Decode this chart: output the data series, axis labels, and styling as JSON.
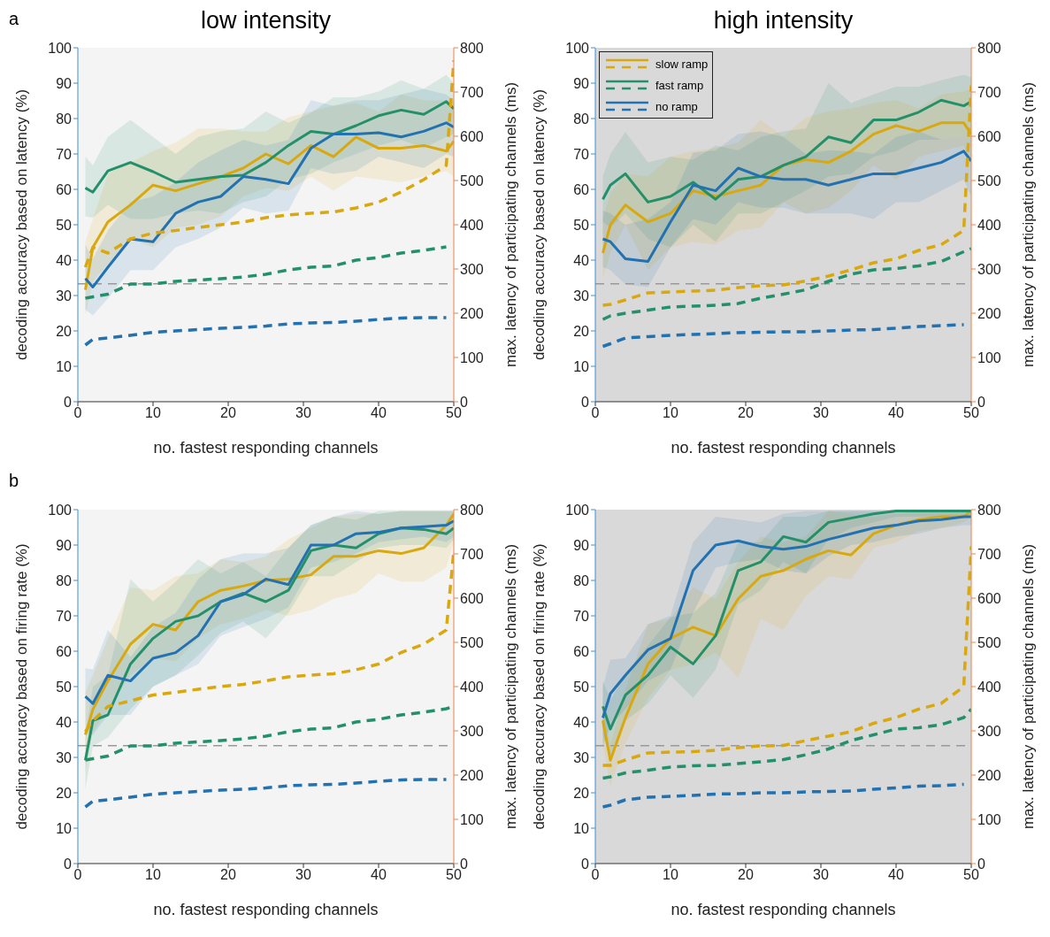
{
  "chart_data": [
    {
      "type": "line",
      "title": "low intensity",
      "xlabel": "no. fastest responding channels",
      "ylabel": "decoding accuracy based on latency (%)",
      "y2label": "max. latency of participating channels (ms)",
      "annotations": [
        "a"
      ],
      "x": [
        1,
        2,
        4,
        7,
        10,
        13,
        16,
        19,
        22,
        25,
        28,
        31,
        34,
        37,
        40,
        43,
        46,
        49,
        50
      ],
      "xlim": [
        0,
        50
      ],
      "xticks": [
        0,
        10,
        20,
        30,
        40,
        50
      ],
      "ylim": [
        0,
        100
      ],
      "yticks": [
        0,
        10,
        20,
        30,
        40,
        50,
        60,
        70,
        80,
        90,
        100
      ],
      "y2lim": [
        0,
        800
      ],
      "y2ticks": [
        0,
        100,
        200,
        300,
        400,
        500,
        600,
        700,
        800
      ],
      "legend": false,
      "ref_lines": [
        {
          "axis": "y",
          "value": 33.3,
          "color": "#999999",
          "line_style": "dashed"
        }
      ],
      "series": [
        {
          "color": "#d9a80f",
          "line_style": "solid",
          "values": [
            31.6,
            43.6,
            50.8,
            55.6,
            61.2,
            59.6,
            61.6,
            63.6,
            66,
            70,
            67.2,
            72.4,
            69.2,
            74.8,
            71.6,
            71.6,
            72.4,
            70.8,
            73.6
          ],
          "lower": [
            24.4,
            34,
            38.8,
            46,
            43.6,
            49.2,
            50,
            52.4,
            58,
            60.4,
            59.6,
            63.6,
            59.6,
            63.6,
            62.8,
            62,
            63.6,
            65.2,
            63.6
          ],
          "upper": [
            45.2,
            51.6,
            64.4,
            67.6,
            70.8,
            73.2,
            77.2,
            77.2,
            76.4,
            76.4,
            80.4,
            82,
            83.6,
            84.4,
            82,
            86.8,
            85.2,
            85.2,
            85.2
          ]
        },
        {
          "color": "#23906a",
          "line_style": "solid",
          "values": [
            60.4,
            59.2,
            65.2,
            67.6,
            65,
            62,
            62.8,
            63.6,
            64,
            67.6,
            72.4,
            76.4,
            75.6,
            78,
            80.8,
            82.4,
            81.2,
            84.8,
            82.8
          ],
          "lower": [
            52.4,
            52,
            55.6,
            51.6,
            51.6,
            53.2,
            54,
            53.2,
            56.4,
            58,
            62.8,
            64.4,
            67.6,
            70,
            72.4,
            74,
            71.6,
            74.8,
            75.6
          ],
          "upper": [
            69.2,
            66.8,
            74.8,
            79.6,
            74.8,
            70,
            74.8,
            76.4,
            77.2,
            82,
            78.8,
            81.6,
            86,
            86,
            87.6,
            90.8,
            88.4,
            92.4,
            90
          ]
        },
        {
          "color": "#2271b1",
          "line_style": "solid",
          "values": [
            34.8,
            32.4,
            38,
            46,
            45.2,
            53.2,
            56.4,
            58,
            63.6,
            62.8,
            61.6,
            71.6,
            75.6,
            75.6,
            76,
            74.8,
            76.4,
            78.8,
            77.6
          ],
          "lower": [
            26,
            24.4,
            29.2,
            37.2,
            37.2,
            43.6,
            46,
            49.2,
            54.8,
            53.2,
            54,
            66,
            64.4,
            65.2,
            69.2,
            67.6,
            66,
            70,
            69.2
          ],
          "upper": [
            44.4,
            40.4,
            48.4,
            56.4,
            58,
            62,
            67.6,
            71,
            74,
            72.4,
            74,
            85.2,
            83.6,
            85.2,
            85.2,
            86.8,
            88.4,
            86.8,
            85.2
          ]
        },
        {
          "color": "#d9a80f",
          "line_style": "dashed",
          "axis": "y2",
          "values": [
            304,
            349,
            336,
            368,
            381,
            387,
            394,
            400,
            406,
            416,
            422,
            426,
            429,
            438,
            451,
            474,
            502,
            534,
            771
          ]
        },
        {
          "color": "#23906a",
          "line_style": "dashed",
          "axis": "y2",
          "values": [
            234,
            237,
            243,
            266,
            266,
            272,
            275,
            278,
            282,
            288,
            298,
            304,
            307,
            320,
            326,
            336,
            342,
            350,
            null
          ]
        },
        {
          "color": "#2271b1",
          "line_style": "dashed",
          "axis": "y2",
          "values": [
            128,
            141,
            144,
            150,
            157,
            160,
            163,
            166,
            168,
            171,
            176,
            178,
            179,
            182,
            186,
            189,
            190,
            190,
            null
          ]
        }
      ]
    },
    {
      "type": "line",
      "title": "high intensity",
      "xlabel": "no. fastest responding channels",
      "ylabel": "decoding accuracy based on latency (%)",
      "y2label": "max. latency of participating channels (ms)",
      "x": [
        1,
        2,
        4,
        7,
        10,
        13,
        16,
        19,
        22,
        25,
        28,
        31,
        34,
        37,
        40,
        43,
        46,
        49,
        50
      ],
      "xlim": [
        0,
        50
      ],
      "xticks": [
        0,
        10,
        20,
        30,
        40,
        50
      ],
      "ylim": [
        0,
        100
      ],
      "yticks": [
        0,
        10,
        20,
        30,
        40,
        50,
        60,
        70,
        80,
        90,
        100
      ],
      "y2lim": [
        0,
        800
      ],
      "y2ticks": [
        0,
        100,
        200,
        300,
        400,
        500,
        600,
        700,
        800
      ],
      "legend": "top left",
      "ref_lines": [
        {
          "axis": "y",
          "value": 33.3,
          "color": "#999999",
          "line_style": "dashed"
        }
      ],
      "series": [
        {
          "name": "slow ramp",
          "color": "#d9a80f",
          "line_style": "solid",
          "values": [
            42,
            50,
            55.6,
            50.8,
            53.2,
            59.6,
            58,
            59.6,
            61.2,
            66.8,
            68.4,
            67.6,
            70.8,
            75.6,
            78,
            76.4,
            78.8,
            78.8,
            75.6
          ],
          "lower": [
            34.8,
            42,
            50,
            37.2,
            43.6,
            45.2,
            44.4,
            48.4,
            49.2,
            56.4,
            53.2,
            54.8,
            59.6,
            66.8,
            62.8,
            69.2,
            70.8,
            72.4,
            67.6
          ],
          "upper": [
            51.6,
            58.8,
            64.4,
            63.6,
            69.2,
            70.8,
            71.6,
            73.2,
            79.6,
            74.8,
            80.4,
            82,
            82.8,
            84.4,
            85.2,
            82.8,
            86.8,
            87.6,
            88.4
          ]
        },
        {
          "name": "fast ramp",
          "color": "#23906a",
          "line_style": "solid",
          "values": [
            57.2,
            61.2,
            64.4,
            56.4,
            58,
            62,
            57.2,
            62.8,
            63.6,
            66.8,
            69.2,
            74.8,
            73.2,
            79.6,
            79.6,
            81.8,
            85.2,
            83.6,
            84.8
          ],
          "lower": [
            50.8,
            49.2,
            53.2,
            46,
            43.6,
            50,
            45.2,
            53.2,
            53.2,
            56.4,
            59.6,
            63.6,
            64.4,
            69.2,
            70.8,
            74,
            74,
            74.8,
            74
          ],
          "upper": [
            63.6,
            70,
            76.2,
            67.6,
            69.2,
            68.4,
            72.4,
            71,
            74.8,
            76.4,
            77.2,
            90,
            84.4,
            86.8,
            89,
            89,
            90.8,
            92.4,
            91.6
          ]
        },
        {
          "name": "no ramp",
          "color": "#2271b1",
          "line_style": "solid",
          "values": [
            46,
            45.2,
            40.4,
            39.6,
            50.8,
            61.2,
            59.6,
            66,
            63.6,
            62.8,
            62.8,
            61.2,
            62.8,
            64.4,
            64.4,
            66,
            67.6,
            70.8,
            68
          ],
          "lower": [
            38,
            37.2,
            33.2,
            32.4,
            43.6,
            51.6,
            50,
            56.4,
            54.8,
            54.8,
            53.2,
            53.2,
            53.2,
            51.6,
            56.4,
            56.4,
            59.6,
            62.8,
            58
          ],
          "upper": [
            54,
            53.2,
            50,
            51.6,
            56.4,
            70.4,
            71,
            75.6,
            76.4,
            74.8,
            70,
            71,
            70.8,
            70,
            74.8,
            76.4,
            74,
            74.8,
            74
          ]
        },
        {
          "color": "#d9a80f",
          "line_style": "dashed",
          "axis": "y2",
          "values": [
            218,
            220,
            230,
            246,
            248,
            250,
            252,
            258,
            262,
            264,
            273,
            284,
            298,
            314,
            323,
            342,
            355,
            387,
            715
          ]
        },
        {
          "color": "#23906a",
          "line_style": "dashed",
          "axis": "y2",
          "values": [
            186,
            194,
            200,
            207,
            214,
            216,
            218,
            222,
            234,
            243,
            253,
            272,
            288,
            298,
            301,
            307,
            317,
            339,
            346
          ]
        },
        {
          "color": "#2271b1",
          "line_style": "dashed",
          "axis": "y2",
          "values": [
            125,
            131,
            144,
            147,
            150,
            152,
            154,
            156,
            157,
            158,
            158,
            160,
            162,
            163,
            166,
            170,
            172,
            174,
            null
          ]
        }
      ]
    },
    {
      "type": "line",
      "xlabel": "no. fastest responding channels",
      "ylabel": "decoding accuracy based on firing rate (%)",
      "y2label": "max. latency of participating channels (ms)",
      "annotations": [
        "b"
      ],
      "x": [
        1,
        2,
        4,
        7,
        10,
        13,
        16,
        19,
        22,
        25,
        28,
        31,
        34,
        37,
        40,
        43,
        46,
        49,
        50
      ],
      "xlim": [
        0,
        50
      ],
      "xticks": [
        0,
        10,
        20,
        30,
        40,
        50
      ],
      "ylim": [
        0,
        100
      ],
      "yticks": [
        0,
        10,
        20,
        30,
        40,
        50,
        60,
        70,
        80,
        90,
        100
      ],
      "y2lim": [
        0,
        800
      ],
      "y2ticks": [
        0,
        100,
        200,
        300,
        400,
        500,
        600,
        700,
        800
      ],
      "legend": false,
      "ref_lines": [
        {
          "axis": "y",
          "value": 33.3,
          "color": "#999999",
          "line_style": "dashed"
        }
      ],
      "series": [
        {
          "color": "#d9a80f",
          "line_style": "solid",
          "values": [
            36.4,
            43.6,
            51.6,
            62,
            67.6,
            66,
            74,
            77.2,
            78.4,
            80,
            80.4,
            81.6,
            86.8,
            86.8,
            88.4,
            87.6,
            89.2,
            95.6,
            98.8
          ],
          "lower": [
            26,
            37.2,
            43.6,
            53.2,
            58,
            57.2,
            63.6,
            67.6,
            69.2,
            71.6,
            70,
            71.6,
            74.8,
            76.4,
            82,
            79.6,
            79.6,
            83.6,
            90.8
          ],
          "upper": [
            48.4,
            53.2,
            63.6,
            78,
            77.2,
            81.2,
            82,
            86,
            85.2,
            86.8,
            91.6,
            94.8,
            98,
            98.8,
            98.8,
            99.6,
            99.6,
            99.6,
            99.6
          ]
        },
        {
          "color": "#23906a",
          "line_style": "solid",
          "values": [
            29.2,
            40.4,
            42,
            56.4,
            63.6,
            68.4,
            70,
            74,
            76.4,
            74,
            77.2,
            88.4,
            90,
            89.2,
            93.2,
            94.8,
            94.4,
            93.2,
            94.8
          ],
          "lower": [
            21.2,
            33.2,
            35.6,
            43.6,
            50,
            53.2,
            58.8,
            65.2,
            68.4,
            63.6,
            70.8,
            81.2,
            81.2,
            85.2,
            89.2,
            90,
            90,
            89.2,
            91.6
          ],
          "upper": [
            36.4,
            50,
            53.2,
            80.4,
            74,
            79.6,
            86,
            82,
            85.2,
            81.2,
            89.2,
            95.6,
            98,
            97.2,
            99.6,
            99.6,
            99.6,
            99.6,
            99.6
          ]
        },
        {
          "color": "#2271b1",
          "line_style": "solid",
          "values": [
            47.2,
            45.2,
            53.2,
            51.6,
            58,
            59.6,
            64.4,
            74,
            76,
            80.4,
            78.8,
            90,
            90,
            93.2,
            93.6,
            94.8,
            95.2,
            95.6,
            96.8
          ],
          "lower": [
            37.2,
            36.4,
            42,
            42,
            50,
            53.2,
            56.4,
            64.4,
            66.8,
            69.2,
            72.4,
            83.6,
            85.2,
            87.6,
            90.8,
            91.6,
            92.4,
            90.8,
            92.4
          ],
          "upper": [
            55.2,
            54.8,
            66,
            58.4,
            66.8,
            70.8,
            80.4,
            86,
            87.6,
            87.6,
            89.2,
            95.6,
            98,
            99.6,
            98.8,
            99.6,
            99.6,
            99.6,
            99.6
          ]
        },
        {
          "color": "#d9a80f",
          "line_style": "dashed",
          "axis": "y2",
          "values": [
            298,
            323,
            355,
            368,
            381,
            387,
            394,
            400,
            405,
            413,
            422,
            426,
            429,
            438,
            451,
            477,
            496,
            528,
            707
          ]
        },
        {
          "color": "#23906a",
          "line_style": "dashed",
          "axis": "y2",
          "values": [
            234,
            237,
            243,
            266,
            266,
            272,
            275,
            278,
            282,
            288,
            298,
            304,
            307,
            320,
            326,
            336,
            342,
            350,
            355
          ]
        },
        {
          "color": "#2271b1",
          "line_style": "dashed",
          "axis": "y2",
          "values": [
            128,
            141,
            144,
            150,
            157,
            160,
            163,
            166,
            168,
            171,
            176,
            178,
            179,
            182,
            186,
            189,
            190,
            190,
            null
          ]
        }
      ]
    },
    {
      "type": "line",
      "xlabel": "no. fastest responding channels",
      "ylabel": "decoding accuracy based on firing rate (%)",
      "y2label": "max. latency of participating channels (ms)",
      "x": [
        1,
        2,
        4,
        7,
        10,
        13,
        16,
        19,
        22,
        25,
        28,
        31,
        34,
        37,
        40,
        43,
        46,
        49,
        50
      ],
      "xlim": [
        0,
        50
      ],
      "xticks": [
        0,
        10,
        20,
        30,
        40,
        50
      ],
      "ylim": [
        0,
        100
      ],
      "yticks": [
        0,
        10,
        20,
        30,
        40,
        50,
        60,
        70,
        80,
        90,
        100
      ],
      "y2lim": [
        0,
        800
      ],
      "y2ticks": [
        0,
        100,
        200,
        300,
        400,
        500,
        600,
        700,
        800
      ],
      "legend": false,
      "ref_lines": [
        {
          "axis": "y",
          "value": 33.3,
          "color": "#999999",
          "line_style": "dashed"
        }
      ],
      "series": [
        {
          "color": "#d9a80f",
          "line_style": "solid",
          "values": [
            40.4,
            29.2,
            41.2,
            56.4,
            63.6,
            66.8,
            64.4,
            74.8,
            81.2,
            82.8,
            86,
            88.4,
            87.2,
            93.2,
            95.6,
            97.2,
            98,
            98,
            99.6
          ],
          "lower": [
            34,
            22,
            34,
            46.8,
            54.8,
            56.4,
            59.6,
            52.4,
            69.2,
            66,
            75.6,
            81.2,
            80.4,
            89.2,
            90.8,
            94,
            94.8,
            96.4,
            98
          ],
          "upper": [
            46.8,
            33.2,
            49.2,
            67.6,
            69.2,
            78,
            74.8,
            85.2,
            92.4,
            90.8,
            92.4,
            99.6,
            98.8,
            98,
            98.8,
            99.6,
            99.6,
            99.6,
            99.6
          ]
        },
        {
          "color": "#23906a",
          "line_style": "solid",
          "values": [
            44.4,
            38,
            47.6,
            53.2,
            61.2,
            56.4,
            64.4,
            82.8,
            85.2,
            92.4,
            90.8,
            96.4,
            97.6,
            98.8,
            99.6,
            99.6,
            99.6,
            99.6,
            99.6
          ],
          "lower": [
            36.4,
            30,
            40.4,
            45.2,
            53.2,
            46.8,
            54.8,
            73.2,
            77.2,
            85.2,
            82,
            91.6,
            94.8,
            96.4,
            98,
            98,
            98,
            98,
            98
          ],
          "upper": [
            51.6,
            46,
            53.6,
            61.6,
            69.6,
            70.8,
            76.4,
            90.8,
            90.8,
            98,
            98,
            99.6,
            99.6,
            99.6,
            99.6,
            99.6,
            99.6,
            99.6,
            99.6
          ]
        },
        {
          "color": "#2271b1",
          "line_style": "solid",
          "values": [
            41.2,
            48,
            53.2,
            60.4,
            63.6,
            82.8,
            90,
            91.2,
            89.6,
            88.8,
            89.6,
            91.6,
            93.2,
            94.8,
            95.6,
            96.8,
            97.2,
            98,
            98
          ],
          "lower": [
            33.2,
            38.8,
            43.6,
            51.6,
            54.8,
            70.8,
            83.6,
            85.2,
            86,
            82.8,
            82,
            86.8,
            90,
            90.8,
            92.4,
            93.2,
            94.8,
            95.6,
            95.6
          ],
          "upper": [
            50,
            57.6,
            58,
            67.6,
            70,
            90.8,
            98,
            97.2,
            96.4,
            98.8,
            99.6,
            99.6,
            99.6,
            99.6,
            99.6,
            99.6,
            99.6,
            99.6,
            99.6
          ]
        },
        {
          "color": "#d9a80f",
          "line_style": "dashed",
          "axis": "y2",
          "values": [
            222,
            222,
            234,
            250,
            252,
            253,
            256,
            262,
            266,
            267,
            278,
            288,
            298,
            317,
            330,
            349,
            362,
            400,
            717
          ]
        },
        {
          "color": "#23906a",
          "line_style": "dashed",
          "axis": "y2",
          "values": [
            193,
            196,
            205,
            211,
            218,
            221,
            222,
            226,
            230,
            235,
            246,
            259,
            278,
            291,
            304,
            307,
            314,
            330,
            349
          ]
        },
        {
          "color": "#2271b1",
          "line_style": "dashed",
          "axis": "y2",
          "values": [
            128,
            132,
            144,
            150,
            152,
            154,
            157,
            158,
            160,
            160,
            162,
            163,
            164,
            168,
            171,
            175,
            176,
            179,
            null
          ]
        }
      ]
    }
  ]
}
